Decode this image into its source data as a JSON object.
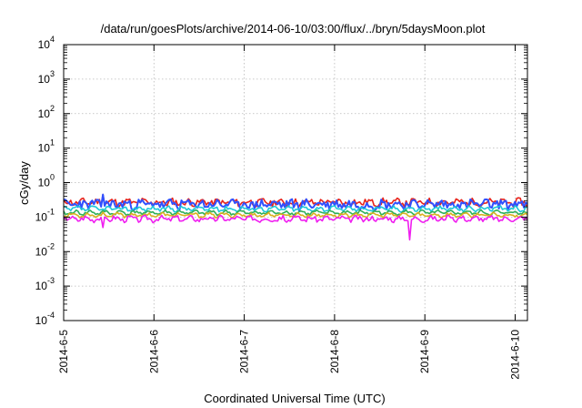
{
  "chart_data": {
    "type": "line",
    "title": "/data/run/goesPlots/archive/2014-06-10/03:00/flux/../bryn/5daysMoon.plot",
    "xlabel": "Coordinated Universal Time (UTC)",
    "ylabel": "cGy/day",
    "yscale": "log",
    "ylim": [
      0.0001,
      10000
    ],
    "xlim": [
      "2014-06-05",
      "2014-06-10 03:00"
    ],
    "grid": true,
    "legend": "none",
    "x_ticks": [
      "2014-6-5",
      "2014-6-6",
      "2014-6-7",
      "2014-6-8",
      "2014-6-9",
      "2014-6-10"
    ],
    "y_ticks": [
      {
        "base": "10",
        "exp": "-4"
      },
      {
        "base": "10",
        "exp": "-3"
      },
      {
        "base": "10",
        "exp": "-2"
      },
      {
        "base": "10",
        "exp": "-1"
      },
      {
        "base": "10",
        "exp": "0"
      },
      {
        "base": "10",
        "exp": "1"
      },
      {
        "base": "10",
        "exp": "2"
      },
      {
        "base": "10",
        "exp": "3"
      },
      {
        "base": "10",
        "exp": "4"
      }
    ],
    "series": [
      {
        "color": "#e8231a",
        "base": 0.27,
        "amp": 0.22,
        "seed": 11
      },
      {
        "color": "#3050ff",
        "base": 0.24,
        "amp": 0.3,
        "seed": 23
      },
      {
        "color": "#1ec8d8",
        "base": 0.175,
        "amp": 0.12,
        "seed": 37
      },
      {
        "color": "#2fb05a",
        "base": 0.135,
        "amp": 0.1,
        "seed": 41
      },
      {
        "color": "#d8b020",
        "base": 0.115,
        "amp": 0.1,
        "seed": 53
      },
      {
        "color": "#f01ef0",
        "base": 0.09,
        "amp": 0.16,
        "seed": 67
      }
    ],
    "spikes": [
      {
        "day": 0.43,
        "up": 0.45,
        "down": 0.05
      },
      {
        "day": 3.83,
        "up": 0.14,
        "down": 0.022
      }
    ]
  }
}
